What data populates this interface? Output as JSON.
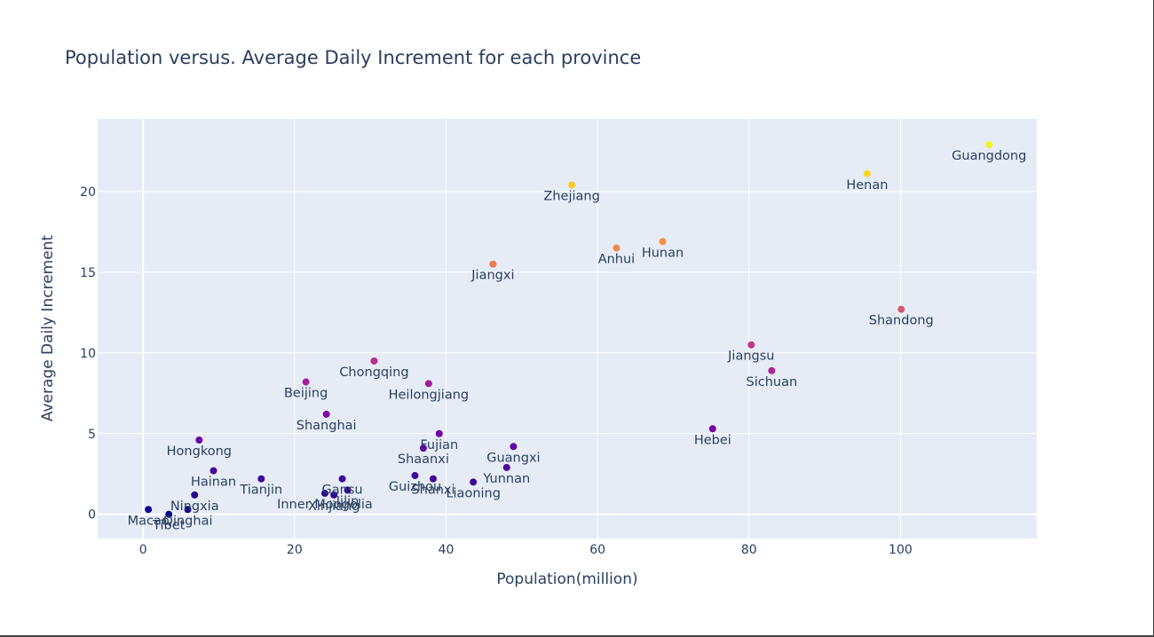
{
  "chart_data": {
    "type": "scatter",
    "title": "Population versus. Average Daily Increment for each province",
    "xlabel": "Population(million)",
    "ylabel": "Average Daily Increment",
    "xlim": [
      -6,
      118
    ],
    "ylim": [
      -1.5,
      24.5
    ],
    "xticks": [
      0,
      20,
      40,
      60,
      80,
      100
    ],
    "yticks": [
      0,
      5,
      10,
      15,
      20
    ],
    "grid": true,
    "colorscale": [
      "#0d0887",
      "#46039f",
      "#7201a8",
      "#9c179e",
      "#bd3786",
      "#d8576b",
      "#ed7953",
      "#fb9f3a",
      "#fdca26",
      "#f0f921"
    ],
    "color_range": [
      0,
      23
    ],
    "points": [
      {
        "label": "Guangdong",
        "x": 111.7,
        "y": 22.9
      },
      {
        "label": "Henan",
        "x": 95.6,
        "y": 21.1
      },
      {
        "label": "Zhejiang",
        "x": 56.6,
        "y": 20.4
      },
      {
        "label": "Hunan",
        "x": 68.6,
        "y": 16.9
      },
      {
        "label": "Anhui",
        "x": 62.5,
        "y": 16.5
      },
      {
        "label": "Jiangxi",
        "x": 46.2,
        "y": 15.5
      },
      {
        "label": "Shandong",
        "x": 100.1,
        "y": 12.7
      },
      {
        "label": "Jiangsu",
        "x": 80.3,
        "y": 10.5
      },
      {
        "label": "Sichuan",
        "x": 83.0,
        "y": 8.9
      },
      {
        "label": "Chongqing",
        "x": 30.5,
        "y": 9.5
      },
      {
        "label": "Beijing",
        "x": 21.5,
        "y": 8.2
      },
      {
        "label": "Heilongjiang",
        "x": 37.7,
        "y": 8.1
      },
      {
        "label": "Shanghai",
        "x": 24.2,
        "y": 6.2
      },
      {
        "label": "Hebei",
        "x": 75.2,
        "y": 5.3
      },
      {
        "label": "Fujian",
        "x": 39.1,
        "y": 5.0
      },
      {
        "label": "Hongkong",
        "x": 7.4,
        "y": 4.6
      },
      {
        "label": "Guangxi",
        "x": 48.9,
        "y": 4.2
      },
      {
        "label": "Shaanxi",
        "x": 37.0,
        "y": 4.1
      },
      {
        "label": "Yunnan",
        "x": 48.0,
        "y": 2.9
      },
      {
        "label": "Hainan",
        "x": 9.3,
        "y": 2.7
      },
      {
        "label": "Guizhou",
        "x": 35.9,
        "y": 2.4
      },
      {
        "label": "Tianjin",
        "x": 15.6,
        "y": 2.2
      },
      {
        "label": "Gansu",
        "x": 26.3,
        "y": 2.2
      },
      {
        "label": "Shanxi",
        "x": 38.3,
        "y": 2.2
      },
      {
        "label": "Liaoning",
        "x": 43.6,
        "y": 2.0
      },
      {
        "label": "Jilin",
        "x": 27.0,
        "y": 1.5
      },
      {
        "label": "Xinjiang",
        "x": 25.2,
        "y": 1.2
      },
      {
        "label": "Inner Mongolia",
        "x": 24.0,
        "y": 1.3
      },
      {
        "label": "Ningxia",
        "x": 6.8,
        "y": 1.2
      },
      {
        "label": "Tibet",
        "x": 3.4,
        "y": 0.0
      },
      {
        "label": "Qinghai",
        "x": 5.9,
        "y": 0.3
      },
      {
        "label": "Macao",
        "x": 0.7,
        "y": 0.3
      }
    ]
  }
}
